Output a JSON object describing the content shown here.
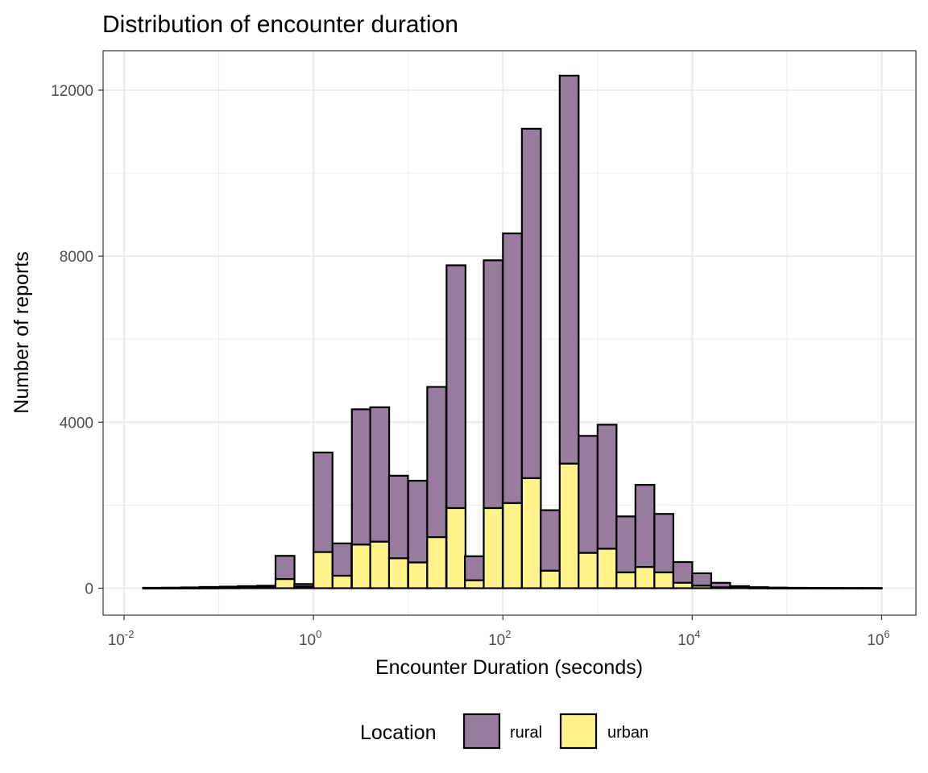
{
  "chart_data": {
    "type": "bar",
    "title": "Distribution of encounter duration",
    "xlabel": "Encounter Duration (seconds)",
    "ylabel": "Number of reports",
    "x_scale": "log10",
    "xlim": [
      0.006,
      2300000
    ],
    "ylim": [
      -650,
      12950
    ],
    "x_ticks": [
      {
        "value": 0.01,
        "base": "10",
        "exp": "-2"
      },
      {
        "value": 1,
        "base": "10",
        "exp": "0"
      },
      {
        "value": 100,
        "base": "10",
        "exp": "2"
      },
      {
        "value": 10000,
        "base": "10",
        "exp": "4"
      },
      {
        "value": 1000000,
        "base": "10",
        "exp": "6"
      }
    ],
    "y_ticks": [
      0,
      4000,
      8000,
      12000
    ],
    "y_tick_labels": [
      "0",
      "4000",
      "8000",
      "12000"
    ],
    "grid": true,
    "stacked": true,
    "bin_width_log10": 0.2,
    "x_bin_centers": [
      0.02,
      0.032,
      0.05,
      0.079,
      0.13,
      0.2,
      0.32,
      0.5,
      0.79,
      1.26,
      2.0,
      3.2,
      5.0,
      7.9,
      12.6,
      20,
      32,
      50,
      79,
      126,
      200,
      316,
      501,
      794,
      1259,
      1995,
      3162,
      5012,
      7943,
      12589,
      19953,
      31623,
      50119,
      79433,
      125893,
      199526,
      316228,
      501187,
      794328
    ],
    "series": [
      {
        "name": "urban",
        "color": "#FFF38A",
        "values": [
          2,
          3,
          4,
          5,
          8,
          10,
          20,
          220,
          40,
          870,
          300,
          1050,
          1120,
          720,
          620,
          1230,
          1930,
          190,
          1930,
          2050,
          2650,
          420,
          3000,
          850,
          950,
          380,
          510,
          380,
          130,
          60,
          20,
          10,
          5,
          3,
          2,
          2,
          1,
          1,
          1
        ]
      },
      {
        "name": "rural",
        "color": "#987C9D",
        "values": [
          8,
          10,
          15,
          25,
          30,
          40,
          40,
          560,
          60,
          2400,
          780,
          3260,
          3240,
          1990,
          1970,
          3620,
          5850,
          580,
          5970,
          6500,
          8420,
          1460,
          9350,
          2820,
          2990,
          1350,
          1980,
          1410,
          500,
          300,
          110,
          40,
          20,
          12,
          8,
          6,
          4,
          3,
          3
        ]
      }
    ],
    "legend": {
      "title": "Location",
      "position": "bottom",
      "entries": [
        "rural",
        "urban"
      ]
    },
    "colors": {
      "rural": "#987C9D",
      "urban": "#FFF38A",
      "outline": "#000000",
      "grid": "#EBEBEB",
      "panel_border": "#333333"
    }
  }
}
